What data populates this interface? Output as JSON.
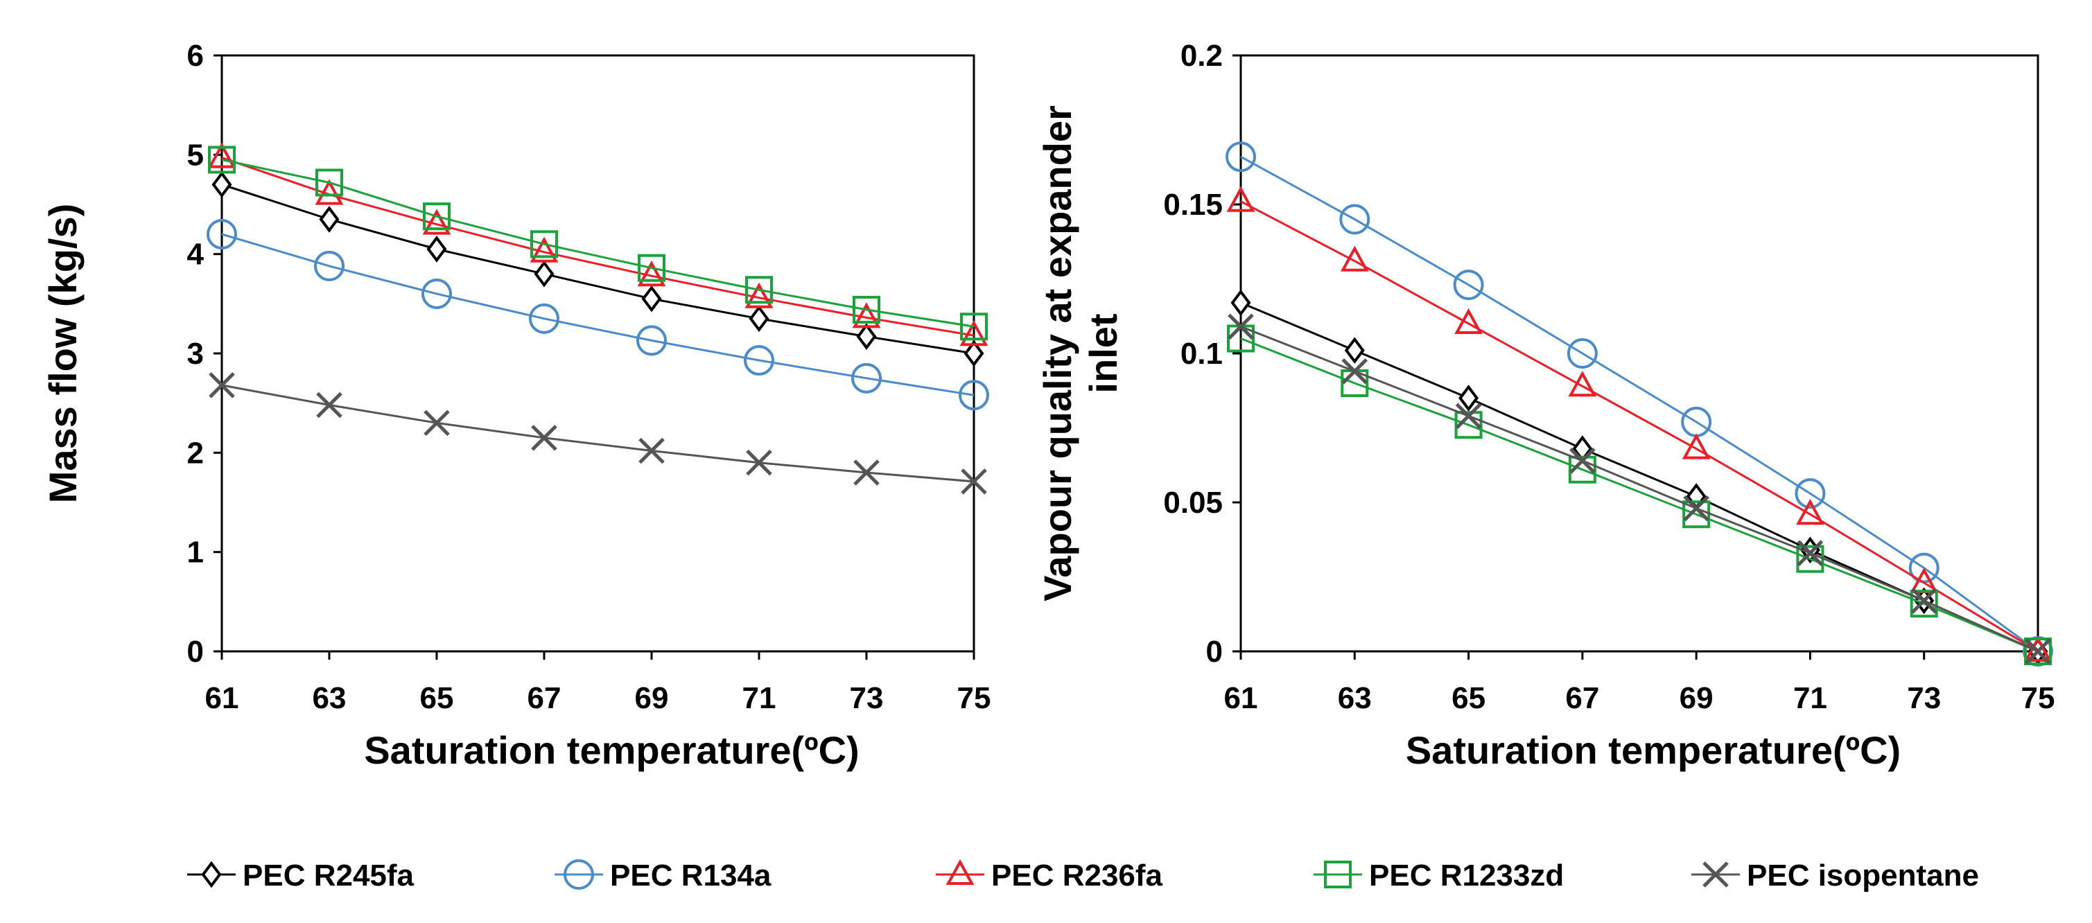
{
  "chart_data": [
    {
      "type": "line",
      "title": "",
      "xlabel": "Saturation temperature(ºC)",
      "ylabel": "Mass flow (kg/s)",
      "x": [
        61,
        63,
        65,
        67,
        69,
        71,
        73,
        75
      ],
      "xlim": [
        61,
        75
      ],
      "ylim": [
        0,
        6
      ],
      "x_ticks": [
        "61",
        "63",
        "65",
        "67",
        "69",
        "71",
        "73",
        "75"
      ],
      "y_ticks": [
        "0",
        "1",
        "2",
        "3",
        "4",
        "5",
        "6"
      ],
      "grid": false,
      "series": [
        {
          "name": "PEC R245fa",
          "values": [
            4.7,
            4.35,
            4.05,
            3.8,
            3.55,
            3.35,
            3.17,
            3.0
          ]
        },
        {
          "name": "PEC R134a",
          "values": [
            4.2,
            3.88,
            3.6,
            3.35,
            3.13,
            2.93,
            2.75,
            2.58
          ]
        },
        {
          "name": "PEC R236fa",
          "values": [
            4.97,
            4.6,
            4.3,
            4.02,
            3.78,
            3.56,
            3.36,
            3.18
          ]
        },
        {
          "name": "PEC R1233zd",
          "values": [
            4.95,
            4.72,
            4.38,
            4.1,
            3.86,
            3.64,
            3.44,
            3.27
          ]
        },
        {
          "name": "PEC isopentane",
          "values": [
            2.68,
            2.48,
            2.3,
            2.15,
            2.02,
            1.9,
            1.8,
            1.71
          ]
        }
      ]
    },
    {
      "type": "line",
      "title": "",
      "xlabel": "Saturation temperature(ºC)",
      "ylabel_lines": [
        "Vapour quality at expander",
        "inlet"
      ],
      "x": [
        61,
        63,
        65,
        67,
        69,
        71,
        73,
        75
      ],
      "xlim": [
        61,
        75
      ],
      "ylim": [
        0,
        0.2
      ],
      "x_ticks": [
        "61",
        "63",
        "65",
        "67",
        "69",
        "71",
        "73",
        "75"
      ],
      "y_ticks": [
        "0",
        "0.05",
        "0.1",
        "0.15",
        "0.2"
      ],
      "grid": false,
      "series": [
        {
          "name": "PEC R245fa",
          "values": [
            0.117,
            0.101,
            0.085,
            0.068,
            0.052,
            0.034,
            0.017,
            0.0
          ]
        },
        {
          "name": "PEC R134a",
          "values": [
            0.166,
            0.145,
            0.123,
            0.1,
            0.077,
            0.053,
            0.028,
            0.0
          ]
        },
        {
          "name": "PEC R236fa",
          "values": [
            0.151,
            0.131,
            0.11,
            0.089,
            0.068,
            0.046,
            0.023,
            0.0
          ]
        },
        {
          "name": "PEC R1233zd",
          "values": [
            0.105,
            0.09,
            0.076,
            0.061,
            0.046,
            0.031,
            0.016,
            0.0
          ]
        },
        {
          "name": "PEC isopentane",
          "values": [
            0.109,
            0.094,
            0.079,
            0.064,
            0.048,
            0.033,
            0.017,
            0.0
          ]
        }
      ]
    }
  ],
  "legend": {
    "placement": "bottom",
    "entries": [
      {
        "label": "PEC R245fa",
        "color": "#000000",
        "marker": "diamond"
      },
      {
        "label": "PEC R134a",
        "color": "#4a8bcc",
        "marker": "circle"
      },
      {
        "label": "PEC R236fa",
        "color": "#ee1c25",
        "marker": "triangle"
      },
      {
        "label": "PEC R1233zd",
        "color": "#1aa33a",
        "marker": "square"
      },
      {
        "label": "PEC isopentane",
        "color": "#555555",
        "marker": "x"
      }
    ]
  }
}
